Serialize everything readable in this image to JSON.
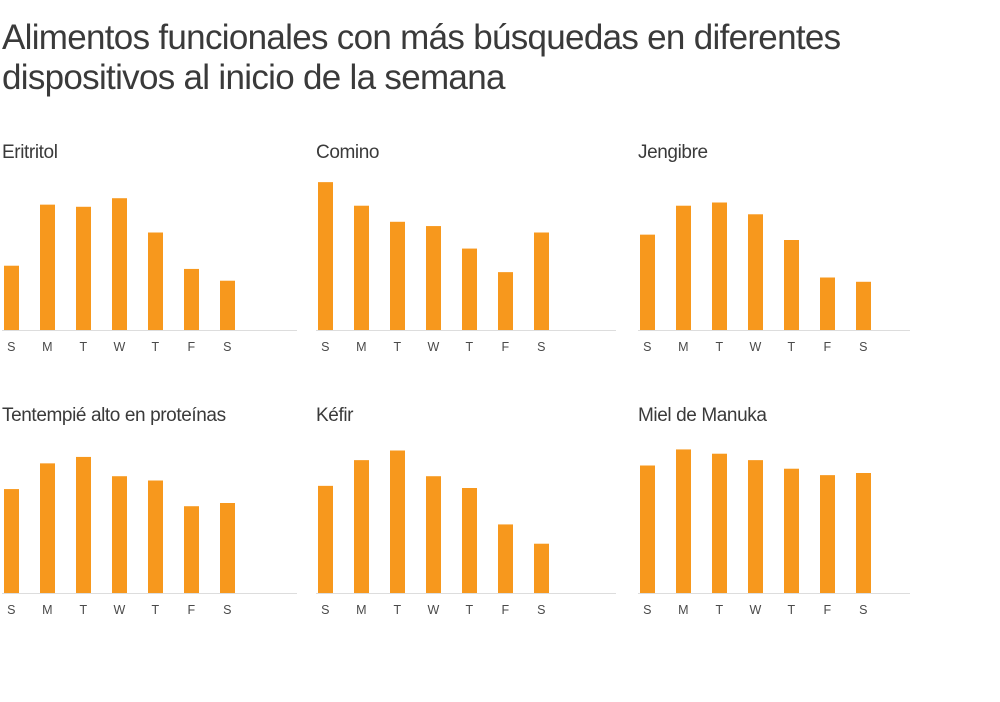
{
  "title": "Alimentos funcionales con más búsquedas en diferentes dispositivos al inicio de la semana",
  "bar_color": "#F7981D",
  "baseline_color": "#dddddd",
  "chart_data": [
    {
      "type": "bar",
      "title": "Eritritol",
      "categories": [
        "S",
        "M",
        "T",
        "W",
        "T",
        "F",
        "S"
      ],
      "values": [
        60,
        117,
        115,
        123,
        91,
        57,
        46
      ],
      "ylim": [
        0,
        140
      ]
    },
    {
      "type": "bar",
      "title": "Comino",
      "categories": [
        "S",
        "M",
        "T",
        "W",
        "T",
        "F",
        "S"
      ],
      "values": [
        138,
        116,
        101,
        97,
        76,
        54,
        91
      ],
      "ylim": [
        0,
        140
      ]
    },
    {
      "type": "bar",
      "title": "Jengibre",
      "categories": [
        "S",
        "M",
        "T",
        "W",
        "T",
        "F",
        "S"
      ],
      "values": [
        89,
        116,
        119,
        108,
        84,
        49,
        45
      ],
      "ylim": [
        0,
        140
      ]
    },
    {
      "type": "bar",
      "title": "Tentempié alto en proteínas",
      "categories": [
        "S",
        "M",
        "T",
        "W",
        "T",
        "F",
        "S"
      ],
      "values": [
        97,
        121,
        127,
        109,
        105,
        81,
        84
      ],
      "ylim": [
        0,
        140
      ]
    },
    {
      "type": "bar",
      "title": "Kéfir",
      "categories": [
        "S",
        "M",
        "T",
        "W",
        "T",
        "F",
        "S"
      ],
      "values": [
        100,
        124,
        133,
        109,
        98,
        64,
        46
      ],
      "ylim": [
        0,
        140
      ]
    },
    {
      "type": "bar",
      "title": "Miel de Manuka",
      "categories": [
        "S",
        "M",
        "T",
        "W",
        "T",
        "F",
        "S"
      ],
      "values": [
        119,
        134,
        130,
        124,
        116,
        110,
        112
      ],
      "ylim": [
        0,
        140
      ]
    }
  ]
}
